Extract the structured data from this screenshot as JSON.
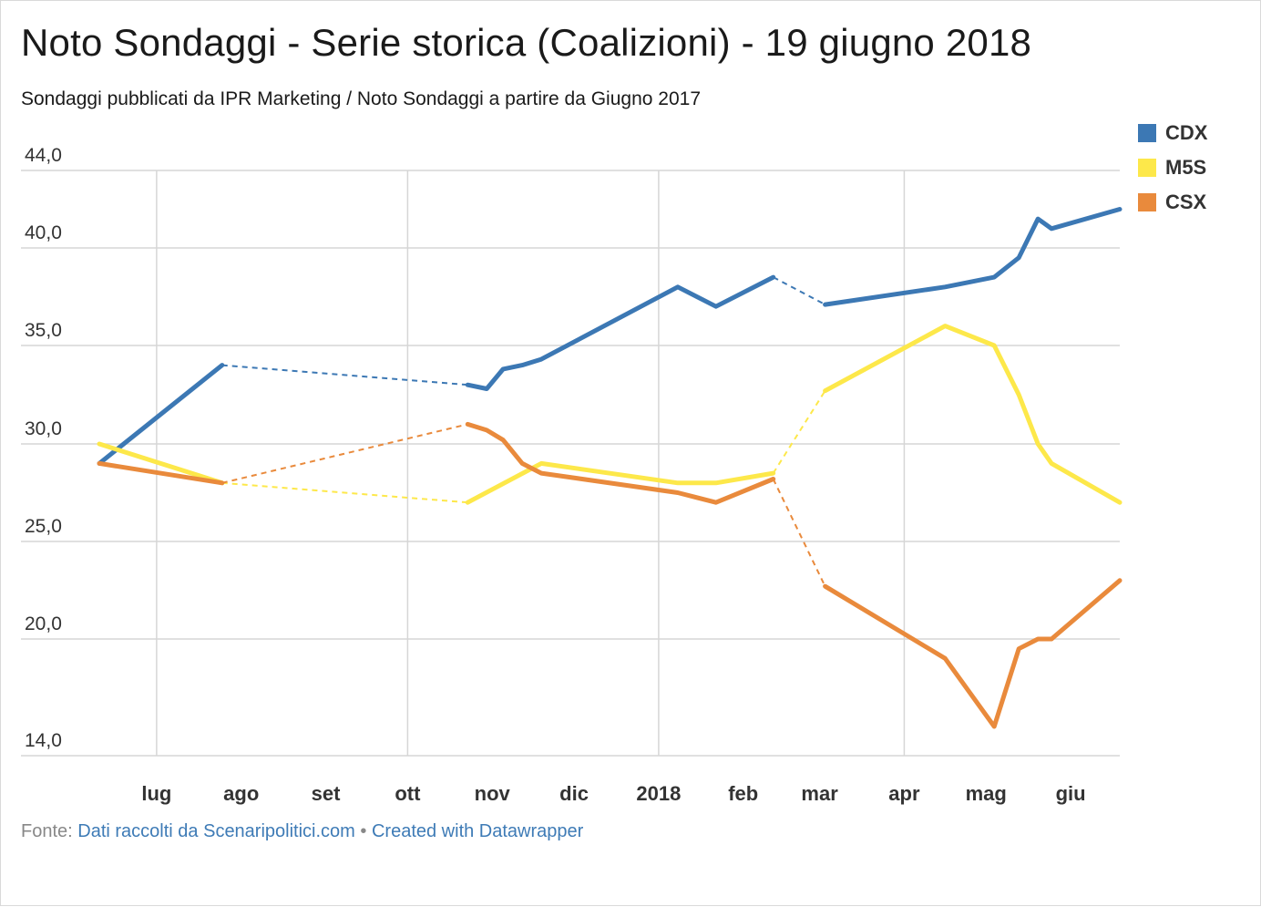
{
  "title": "Noto Sondaggi - Serie storica (Coalizioni) - 19 giugno 2018",
  "subtitle": "Sondaggi pubblicati da IPR Marketing / Noto Sondaggi a partire da Giugno 2017",
  "source": {
    "prefix": "Fonte:",
    "link1": "Dati raccolti da Scenaripolitici.com",
    "separator": "•",
    "link2": "Created with Datawrapper"
  },
  "chart_data": {
    "type": "line",
    "title": "Noto Sondaggi - Serie storica (Coalizioni) - 19 giugno 2018",
    "xlabel": "",
    "ylabel": "",
    "x_tick_labels": [
      "lug",
      "ago",
      "set",
      "ott",
      "nov",
      "dic",
      "2018",
      "feb",
      "mar",
      "apr",
      "mag",
      "giu"
    ],
    "x_tick_dates": [
      "2017-07-01",
      "2017-08-01",
      "2017-09-01",
      "2017-10-01",
      "2017-11-01",
      "2017-12-01",
      "2018-01-01",
      "2018-02-01",
      "2018-03-01",
      "2018-04-01",
      "2018-05-01",
      "2018-06-01"
    ],
    "y_tick_labels": [
      "44,0",
      "40,0",
      "35,0",
      "30,0",
      "25,0",
      "20,0",
      "14,0"
    ],
    "y_tick_values": [
      44,
      40,
      35,
      30,
      25,
      20,
      14
    ],
    "ylim": [
      14,
      44
    ],
    "xlim": [
      "2017-06-10",
      "2018-06-19"
    ],
    "grid": true,
    "legend_position": "top-right",
    "series": [
      {
        "name": "CDX",
        "color": "#3c78b4",
        "points": [
          {
            "x": "2017-06-10",
            "y": 29.0
          },
          {
            "x": "2017-07-25",
            "y": 34.0
          },
          {
            "x": "2017-10-23",
            "y": 33.0
          },
          {
            "x": "2017-10-30",
            "y": 32.8
          },
          {
            "x": "2017-11-05",
            "y": 33.8
          },
          {
            "x": "2017-11-12",
            "y": 34.0
          },
          {
            "x": "2017-11-19",
            "y": 34.3
          },
          {
            "x": "2018-01-08",
            "y": 38.0
          },
          {
            "x": "2018-01-22",
            "y": 37.0
          },
          {
            "x": "2018-02-12",
            "y": 38.5
          },
          {
            "x": "2018-03-03",
            "y": 37.1
          },
          {
            "x": "2018-04-16",
            "y": 38.0
          },
          {
            "x": "2018-05-04",
            "y": 38.5
          },
          {
            "x": "2018-05-13",
            "y": 39.5
          },
          {
            "x": "2018-05-20",
            "y": 41.5
          },
          {
            "x": "2018-05-25",
            "y": 41.0
          },
          {
            "x": "2018-06-19",
            "y": 42.0
          }
        ],
        "dashed_gaps": [
          [
            1,
            2
          ],
          [
            9,
            10
          ]
        ]
      },
      {
        "name": "M5S",
        "color": "#fde84a",
        "points": [
          {
            "x": "2017-06-10",
            "y": 30.0
          },
          {
            "x": "2017-07-25",
            "y": 28.0
          },
          {
            "x": "2017-10-23",
            "y": 27.0
          },
          {
            "x": "2017-11-19",
            "y": 29.0
          },
          {
            "x": "2018-01-08",
            "y": 28.0
          },
          {
            "x": "2018-01-22",
            "y": 28.0
          },
          {
            "x": "2018-02-12",
            "y": 28.5
          },
          {
            "x": "2018-03-03",
            "y": 32.7
          },
          {
            "x": "2018-04-16",
            "y": 36.0
          },
          {
            "x": "2018-05-04",
            "y": 35.0
          },
          {
            "x": "2018-05-13",
            "y": 32.5
          },
          {
            "x": "2018-05-20",
            "y": 30.0
          },
          {
            "x": "2018-05-25",
            "y": 29.0
          },
          {
            "x": "2018-06-19",
            "y": 27.0
          }
        ],
        "dashed_gaps": [
          [
            1,
            2
          ],
          [
            6,
            7
          ]
        ]
      },
      {
        "name": "CSX",
        "color": "#e98a3c",
        "points": [
          {
            "x": "2017-06-10",
            "y": 29.0
          },
          {
            "x": "2017-07-25",
            "y": 28.0
          },
          {
            "x": "2017-10-23",
            "y": 31.0
          },
          {
            "x": "2017-10-30",
            "y": 30.7
          },
          {
            "x": "2017-11-05",
            "y": 30.2
          },
          {
            "x": "2017-11-12",
            "y": 29.0
          },
          {
            "x": "2017-11-19",
            "y": 28.5
          },
          {
            "x": "2018-01-08",
            "y": 27.5
          },
          {
            "x": "2018-01-22",
            "y": 27.0
          },
          {
            "x": "2018-02-12",
            "y": 28.2
          },
          {
            "x": "2018-03-03",
            "y": 22.7
          },
          {
            "x": "2018-04-16",
            "y": 19.0
          },
          {
            "x": "2018-05-04",
            "y": 15.5
          },
          {
            "x": "2018-05-13",
            "y": 19.5
          },
          {
            "x": "2018-05-20",
            "y": 20.0
          },
          {
            "x": "2018-05-25",
            "y": 20.0
          },
          {
            "x": "2018-06-19",
            "y": 23.0
          }
        ],
        "dashed_gaps": [
          [
            1,
            2
          ],
          [
            9,
            10
          ]
        ]
      }
    ]
  }
}
